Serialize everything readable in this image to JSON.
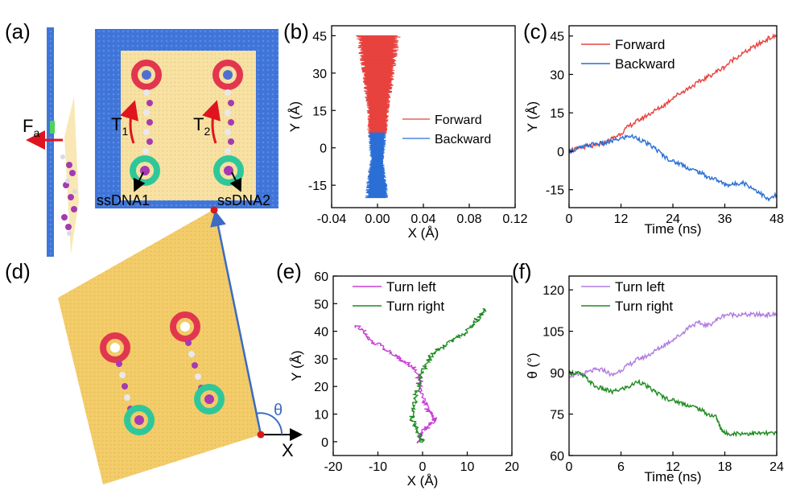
{
  "panel_labels": {
    "a": "(a)",
    "b": "(b)",
    "c": "(c)",
    "d": "(d)",
    "e": "(e)",
    "f": "(f)"
  },
  "panel_a": {
    "force_label": "F",
    "force_subscript": "a",
    "torque1_label": "T",
    "torque1_subscript": "1",
    "torque2_label": "T",
    "torque2_subscript": "2",
    "strand1_label": "ssDNA1",
    "strand2_label": "ssDNA2",
    "colors": {
      "membrane": "#3f75d8",
      "sheet": "#f7e2a4",
      "ring_top": "#e2364f",
      "ring_bottom": "#2fc79a",
      "chain": "#a43bb2",
      "arrow": "#e0141e"
    }
  },
  "panel_d": {
    "angle_label": "θ",
    "axis_label": "X",
    "colors": {
      "sheet": "#f3cd6b",
      "ring_top": "#e2364f",
      "ring_bottom": "#2fc79a",
      "chain": "#a43bb2",
      "vector": "#3b6bc4"
    }
  },
  "chart_data": [
    {
      "panel": "b",
      "type": "area",
      "xlabel": "X (Å)",
      "ylabel": "Y (Å)",
      "xlim": [
        -0.04,
        0.12
      ],
      "ylim": [
        -24,
        49
      ],
      "xticks": [
        "-0.04",
        "0.00",
        "0.04",
        "0.08",
        "0.12"
      ],
      "xtick_values": [
        -0.04,
        0.0,
        0.04,
        0.08,
        0.12
      ],
      "yticks": [
        "45",
        "30",
        "15",
        "0",
        "-15"
      ],
      "ytick_values": [
        45,
        30,
        15,
        0,
        -15
      ],
      "series": [
        {
          "name": "Forward",
          "color": "#e8423e",
          "y": [
            6,
            10,
            15,
            20,
            25,
            30,
            35,
            40,
            45
          ],
          "x_min": [
            -0.012,
            -0.011,
            -0.012,
            -0.014,
            -0.016,
            -0.018,
            -0.02,
            -0.022,
            -0.025
          ],
          "x_max": [
            0.011,
            0.012,
            0.013,
            0.015,
            0.018,
            0.02,
            0.022,
            0.024,
            0.026
          ]
        },
        {
          "name": "Backward",
          "color": "#2a6fd6",
          "y": [
            -20,
            -15,
            -10,
            -5,
            0,
            6
          ],
          "x_min": [
            -0.014,
            -0.013,
            -0.011,
            -0.008,
            -0.01,
            -0.011
          ],
          "x_max": [
            0.012,
            0.011,
            0.009,
            0.007,
            0.009,
            0.01
          ]
        }
      ]
    },
    {
      "panel": "c",
      "type": "line",
      "xlabel": "Time (ns)",
      "ylabel": "Y (Å)",
      "xlim": [
        0,
        48
      ],
      "ylim": [
        -22,
        49
      ],
      "xticks": [
        "0",
        "12",
        "24",
        "36",
        "48"
      ],
      "xtick_values": [
        0,
        12,
        24,
        36,
        48
      ],
      "yticks": [
        "45",
        "30",
        "15",
        "0",
        "-15"
      ],
      "ytick_values": [
        45,
        30,
        15,
        0,
        -15
      ],
      "series": [
        {
          "name": "Forward",
          "color": "#e8423e",
          "x": [
            0,
            2,
            4,
            6,
            8,
            10,
            12,
            14,
            16,
            18,
            20,
            22,
            24,
            26,
            28,
            30,
            32,
            34,
            36,
            38,
            40,
            42,
            44,
            46,
            48
          ],
          "y": [
            0,
            1,
            2,
            2,
            3,
            5,
            7,
            10,
            12,
            14,
            16,
            18,
            21,
            23,
            25,
            27,
            29,
            31,
            33,
            36,
            38,
            40,
            42,
            44,
            45
          ]
        },
        {
          "name": "Backward",
          "color": "#2a6fd6",
          "x": [
            0,
            2,
            4,
            6,
            8,
            10,
            12,
            14,
            16,
            18,
            20,
            22,
            24,
            26,
            28,
            30,
            32,
            34,
            36,
            38,
            40,
            42,
            44,
            46,
            48
          ],
          "y": [
            0,
            1,
            2,
            3,
            3,
            4,
            5,
            6,
            5,
            3,
            1,
            -2,
            -4,
            -5,
            -7,
            -8,
            -10,
            -11,
            -13,
            -13,
            -12,
            -14,
            -16,
            -19,
            -17
          ]
        }
      ]
    },
    {
      "panel": "e",
      "type": "line",
      "xlabel": "X (Å)",
      "ylabel": "Y (Å)",
      "xlim": [
        -20,
        20
      ],
      "ylim": [
        -5,
        60
      ],
      "xticks": [
        "-20",
        "-10",
        "0",
        "10",
        "20"
      ],
      "xtick_values": [
        -20,
        -10,
        0,
        10,
        20
      ],
      "yticks": [
        "0",
        "10",
        "20",
        "30",
        "40",
        "50",
        "60"
      ],
      "ytick_values": [
        0,
        10,
        20,
        30,
        40,
        50,
        60
      ],
      "series": [
        {
          "name": "Turn left",
          "color": "#c93fd6",
          "x": [
            -1,
            -0.5,
            0.5,
            1.5,
            3,
            2,
            1,
            0.5,
            -0.5,
            -0.5,
            -1.5,
            -3,
            -5,
            -6,
            -8,
            -10,
            -12,
            -13,
            -15
          ],
          "y": [
            0,
            2,
            4,
            6,
            8,
            10,
            12,
            14,
            18,
            22,
            26,
            28,
            30,
            31,
            33,
            35,
            37,
            40,
            42
          ]
        },
        {
          "name": "Turn right",
          "color": "#1f8c21",
          "x": [
            0,
            -0.5,
            -1.5,
            -2.5,
            -2,
            -1.5,
            -1,
            -0.5,
            0.5,
            1.5,
            2.5,
            4,
            6,
            8,
            10,
            11,
            12,
            13,
            14
          ],
          "y": [
            0,
            2,
            5,
            8,
            12,
            16,
            20,
            24,
            27,
            30,
            32,
            34,
            36,
            38,
            40,
            42,
            44,
            46,
            48
          ]
        }
      ]
    },
    {
      "panel": "f",
      "type": "line",
      "xlabel": "Time (ns)",
      "ylabel": "θ (°)",
      "xlim": [
        0,
        24
      ],
      "ylim": [
        60,
        125
      ],
      "xticks": [
        "0",
        "6",
        "12",
        "18",
        "24"
      ],
      "xtick_values": [
        0,
        6,
        12,
        18,
        24
      ],
      "yticks": [
        "120",
        "105",
        "90",
        "75",
        "60"
      ],
      "ytick_values": [
        120,
        105,
        90,
        75,
        60
      ],
      "series": [
        {
          "name": "Turn left",
          "color": "#b07be0",
          "x": [
            0,
            1,
            2,
            3,
            4,
            5,
            6,
            7,
            8,
            9,
            10,
            11,
            12,
            13,
            14,
            15,
            16,
            17,
            18,
            19,
            20,
            21,
            22,
            23,
            24
          ],
          "y": [
            89,
            89,
            90,
            91,
            91,
            89,
            91,
            93,
            95,
            96,
            98,
            100,
            102,
            104,
            107,
            108,
            107,
            109,
            111,
            111,
            111,
            111,
            111,
            111,
            111
          ]
        },
        {
          "name": "Turn right",
          "color": "#1f8c21",
          "x": [
            0,
            1,
            2,
            3,
            4,
            5,
            6,
            7,
            8,
            9,
            10,
            11,
            12,
            13,
            14,
            15,
            16,
            17,
            17.5,
            18,
            19,
            20,
            21,
            22,
            23,
            24
          ],
          "y": [
            90,
            90,
            88,
            85,
            84,
            83,
            84,
            85,
            87,
            85,
            83,
            81,
            80,
            79,
            78,
            77,
            75,
            74,
            70,
            68,
            68,
            68,
            68,
            68,
            68,
            68
          ]
        }
      ]
    }
  ]
}
